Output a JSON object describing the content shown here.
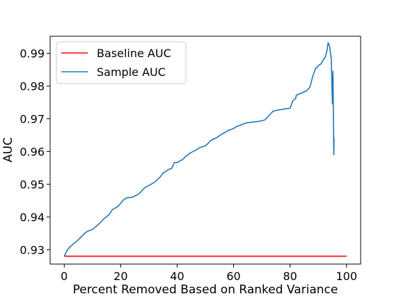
{
  "chart_data": {
    "type": "line",
    "title": "",
    "xlabel": "Percent Removed Based on Ranked Variance",
    "ylabel": "AUC",
    "xlim": [
      -5,
      105
    ],
    "ylim": [
      0.9256,
      0.9952
    ],
    "xticks": [
      0,
      20,
      40,
      60,
      80,
      100
    ],
    "xtick_labels": [
      "0",
      "20",
      "40",
      "60",
      "80",
      "100"
    ],
    "yticks": [
      0.93,
      0.94,
      0.95,
      0.96,
      0.97,
      0.98,
      0.99
    ],
    "ytick_labels": [
      "0.93",
      "0.94",
      "0.95",
      "0.96",
      "0.97",
      "0.98",
      "0.99"
    ],
    "grid": false,
    "legend_position": "top-left",
    "series": [
      {
        "name": "Baseline AUC",
        "color": "#ff0000",
        "x": [
          0,
          100
        ],
        "y": [
          0.928,
          0.928
        ]
      },
      {
        "name": "Sample AUC",
        "color": "#1f77b4",
        "x": [
          0,
          1,
          2,
          3,
          5,
          7,
          8,
          10,
          12,
          14,
          16,
          17,
          19,
          20,
          21,
          22,
          24,
          26,
          27,
          28,
          29,
          30,
          32,
          34,
          35,
          37,
          38,
          38.5,
          39,
          40,
          42,
          43,
          45,
          47,
          48,
          50,
          51,
          52,
          54,
          55,
          56,
          57,
          58,
          59,
          60,
          61,
          62,
          63,
          64,
          65,
          67,
          69,
          70,
          71,
          72,
          73,
          74,
          75,
          76,
          77,
          78,
          79,
          80,
          81,
          82,
          82.2,
          84,
          86,
          87,
          88,
          89,
          90,
          91,
          92,
          92.5,
          93,
          93.5,
          94,
          94.6,
          95.0,
          95.2,
          95.4,
          95.5,
          95.6
        ],
        "y": [
          0.928,
          0.9298,
          0.9308,
          0.9316,
          0.933,
          0.9348,
          0.9355,
          0.9362,
          0.9376,
          0.9394,
          0.9408,
          0.9422,
          0.9432,
          0.9442,
          0.9452,
          0.9458,
          0.946,
          0.9468,
          0.9475,
          0.9485,
          0.9492,
          0.9496,
          0.9506,
          0.9522,
          0.9534,
          0.9545,
          0.9548,
          0.9556,
          0.9566,
          0.9566,
          0.9576,
          0.9585,
          0.9597,
          0.9606,
          0.9612,
          0.9617,
          0.9625,
          0.9634,
          0.9642,
          0.9648,
          0.9654,
          0.9658,
          0.9664,
          0.9667,
          0.967,
          0.9676,
          0.9679,
          0.9682,
          0.9686,
          0.9688,
          0.969,
          0.9692,
          0.9694,
          0.9696,
          0.9705,
          0.9714,
          0.9723,
          0.9725,
          0.9727,
          0.9728,
          0.973,
          0.9731,
          0.9732,
          0.9755,
          0.9762,
          0.9772,
          0.9778,
          0.9786,
          0.9796,
          0.9828,
          0.9853,
          0.9862,
          0.9868,
          0.9883,
          0.9888,
          0.9905,
          0.9932,
          0.9922,
          0.9882,
          0.9745,
          0.9845,
          0.967,
          0.959,
          0.9642
        ]
      }
    ]
  }
}
